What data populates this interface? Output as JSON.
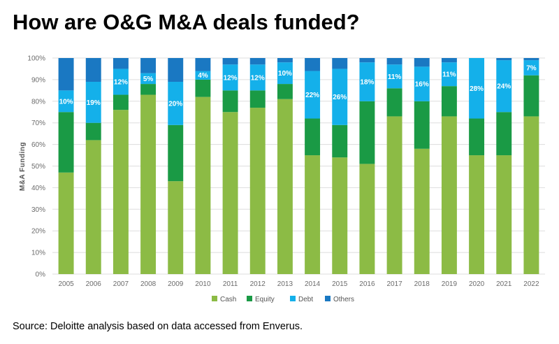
{
  "title": "How are O&G M&A deals funded?",
  "source": "Source: Deloitte analysis based on data accessed from Enverus.",
  "colors": {
    "cash": "#8cbb45",
    "equity": "#1a9a45",
    "debt": "#14b0ea",
    "others": "#1a78c2",
    "grid": "#dddddd"
  },
  "chart_data": {
    "type": "bar",
    "stacked": true,
    "title": "How are O&G M&A deals funded?",
    "xlabel": "",
    "ylabel": "M&A Funding",
    "ylim": [
      0,
      100
    ],
    "yticks": [
      "0%",
      "10%",
      "20%",
      "30%",
      "40%",
      "50%",
      "60%",
      "70%",
      "80%",
      "90%",
      "100%"
    ],
    "categories": [
      "2005",
      "2006",
      "2007",
      "2008",
      "2009",
      "2010",
      "2011",
      "2012",
      "2013",
      "2014",
      "2015",
      "2016",
      "2017",
      "2018",
      "2019",
      "2020",
      "2021",
      "2022"
    ],
    "series": [
      {
        "name": "Cash",
        "key": "cash",
        "values": [
          47,
          62,
          76,
          83,
          43,
          82,
          75,
          77,
          81,
          55,
          54,
          51,
          73,
          58,
          73,
          55,
          55,
          73
        ]
      },
      {
        "name": "Equity",
        "key": "equity",
        "values": [
          28,
          8,
          7,
          5,
          26,
          8,
          10,
          8,
          7,
          17,
          15,
          29,
          13,
          22,
          14,
          17,
          20,
          19
        ]
      },
      {
        "name": "Debt",
        "key": "debt",
        "values": [
          10,
          19,
          12,
          5,
          20,
          4,
          12,
          12,
          10,
          22,
          26,
          18,
          11,
          16,
          11,
          28,
          24,
          7
        ]
      },
      {
        "name": "Others",
        "key": "others",
        "values": [
          15,
          11,
          5,
          7,
          11,
          6,
          3,
          3,
          2,
          6,
          5,
          2,
          3,
          4,
          2,
          0,
          1,
          1
        ]
      }
    ],
    "data_labels": [
      "10%",
      "19%",
      "12%",
      "5%",
      "20%",
      "4%",
      "12%",
      "12%",
      "10%",
      "22%",
      "26%",
      "18%",
      "11%",
      "16%",
      "11%",
      "28%",
      "24%",
      "7%"
    ],
    "legend": [
      "Cash",
      "Equity",
      "Debt",
      "Others"
    ],
    "legend_position": "bottom",
    "grid": true
  }
}
